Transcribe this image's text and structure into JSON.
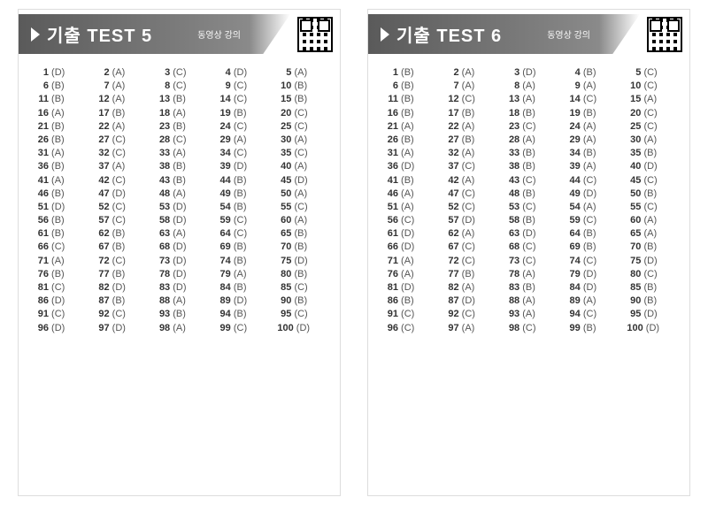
{
  "panels": [
    {
      "title": "기출 TEST 5",
      "subtitle": "동영상 강의",
      "header_bg_start": "#5a5a5a",
      "header_bg_end": "#8a8a8a",
      "text_color": "#333333",
      "answers": [
        "D",
        "A",
        "C",
        "D",
        "A",
        "B",
        "A",
        "C",
        "C",
        "B",
        "B",
        "A",
        "B",
        "C",
        "B",
        "A",
        "B",
        "A",
        "B",
        "C",
        "B",
        "A",
        "B",
        "C",
        "C",
        "B",
        "C",
        "C",
        "A",
        "A",
        "A",
        "C",
        "A",
        "C",
        "C",
        "B",
        "A",
        "B",
        "D",
        "A",
        "A",
        "C",
        "B",
        "B",
        "D",
        "B",
        "D",
        "A",
        "B",
        "A",
        "D",
        "C",
        "D",
        "B",
        "C",
        "B",
        "C",
        "D",
        "C",
        "A",
        "B",
        "B",
        "A",
        "C",
        "B",
        "C",
        "B",
        "D",
        "B",
        "B",
        "A",
        "C",
        "D",
        "B",
        "D",
        "B",
        "B",
        "D",
        "A",
        "B",
        "C",
        "D",
        "D",
        "B",
        "C",
        "D",
        "B",
        "A",
        "D",
        "B",
        "C",
        "C",
        "B",
        "B",
        "C",
        "D",
        "D",
        "A",
        "C",
        "D"
      ]
    },
    {
      "title": "기출 TEST 6",
      "subtitle": "동영상 강의",
      "header_bg_start": "#5a5a5a",
      "header_bg_end": "#8a8a8a",
      "text_color": "#333333",
      "answers": [
        "B",
        "A",
        "D",
        "B",
        "C",
        "B",
        "A",
        "A",
        "A",
        "C",
        "B",
        "C",
        "A",
        "C",
        "A",
        "B",
        "B",
        "B",
        "B",
        "C",
        "A",
        "A",
        "C",
        "A",
        "C",
        "B",
        "B",
        "A",
        "A",
        "A",
        "A",
        "A",
        "B",
        "B",
        "B",
        "D",
        "C",
        "B",
        "A",
        "D",
        "B",
        "A",
        "C",
        "C",
        "C",
        "A",
        "C",
        "B",
        "D",
        "B",
        "A",
        "C",
        "C",
        "A",
        "C",
        "C",
        "D",
        "B",
        "C",
        "A",
        "D",
        "A",
        "D",
        "B",
        "A",
        "D",
        "C",
        "C",
        "B",
        "B",
        "A",
        "C",
        "C",
        "C",
        "D",
        "A",
        "B",
        "A",
        "D",
        "C",
        "D",
        "A",
        "B",
        "D",
        "B",
        "B",
        "D",
        "A",
        "A",
        "B",
        "C",
        "C",
        "A",
        "C",
        "D",
        "C",
        "A",
        "C",
        "B",
        "D"
      ]
    }
  ],
  "layout": {
    "columns": 5,
    "rows": 20,
    "cell_fontsize": 11,
    "title_fontsize": 20,
    "subtitle_fontsize": 10
  }
}
